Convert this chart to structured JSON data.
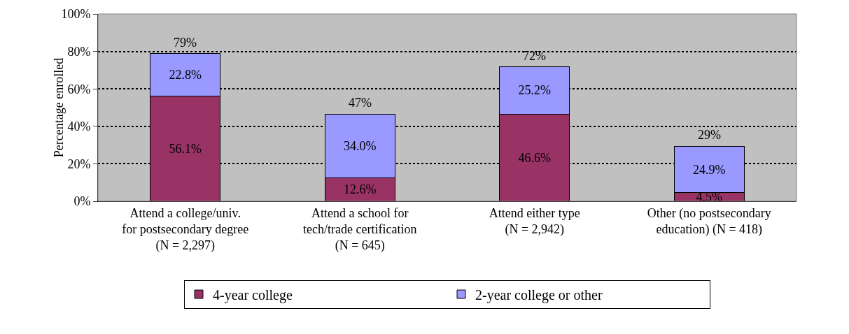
{
  "chart_data": {
    "type": "bar",
    "stacked": true,
    "ylabel": "Percentage enrolled",
    "categories": [
      "Attend a college/univ. for postsecondary degree (N = 2,297)",
      "Attend a school for tech/trade certification (N = 645)",
      "Attend either type (N = 2,942)",
      "Other (no postsecondary education) (N = 418)"
    ],
    "series": [
      {
        "name": "4-year college",
        "color": "#993366",
        "values": [
          56.1,
          12.6,
          46.6,
          4.5
        ],
        "value_labels": [
          "56.1%",
          "12.6%",
          "46.6%",
          "4.5%"
        ]
      },
      {
        "name": "2-year college or other",
        "color": "#9999ff",
        "values": [
          22.8,
          34.0,
          25.2,
          24.9
        ],
        "value_labels": [
          "22.8%",
          "34.0%",
          "25.2%",
          "24.9%"
        ]
      }
    ],
    "totals": [
      "79%",
      "47%",
      "72%",
      "29%"
    ],
    "ylim": [
      0,
      100
    ],
    "yticks": [
      {
        "value": 0,
        "label": "0%"
      },
      {
        "value": 20,
        "label": "20%"
      },
      {
        "value": 40,
        "label": "40%"
      },
      {
        "value": 60,
        "label": "60%"
      },
      {
        "value": 80,
        "label": "80%"
      },
      {
        "value": 100,
        "label": "100%"
      }
    ],
    "grid": "y",
    "legend": "bottom"
  }
}
